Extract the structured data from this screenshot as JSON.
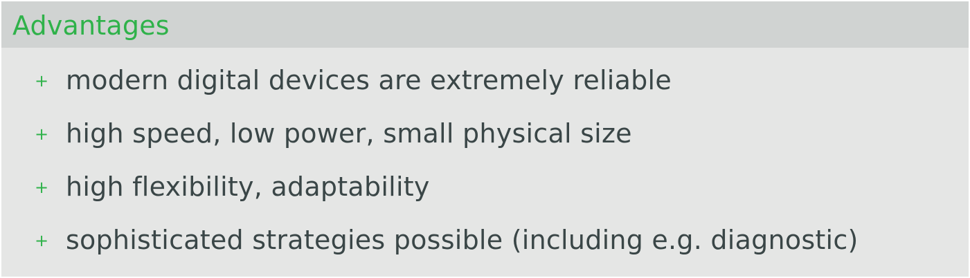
{
  "block": {
    "title": "Advantages",
    "bullet_symbol": "+",
    "items": [
      "modern digital devices are extremely reliable",
      "high speed, low power, small physical size",
      "high flexibility, adaptability",
      "sophisticated strategies possible (including e.g. diagnostic)"
    ]
  },
  "colors": {
    "accent": "#2fb24a",
    "header_bg": "#d0d3d2",
    "body_bg": "#e5e6e5",
    "text": "#3a4647"
  }
}
